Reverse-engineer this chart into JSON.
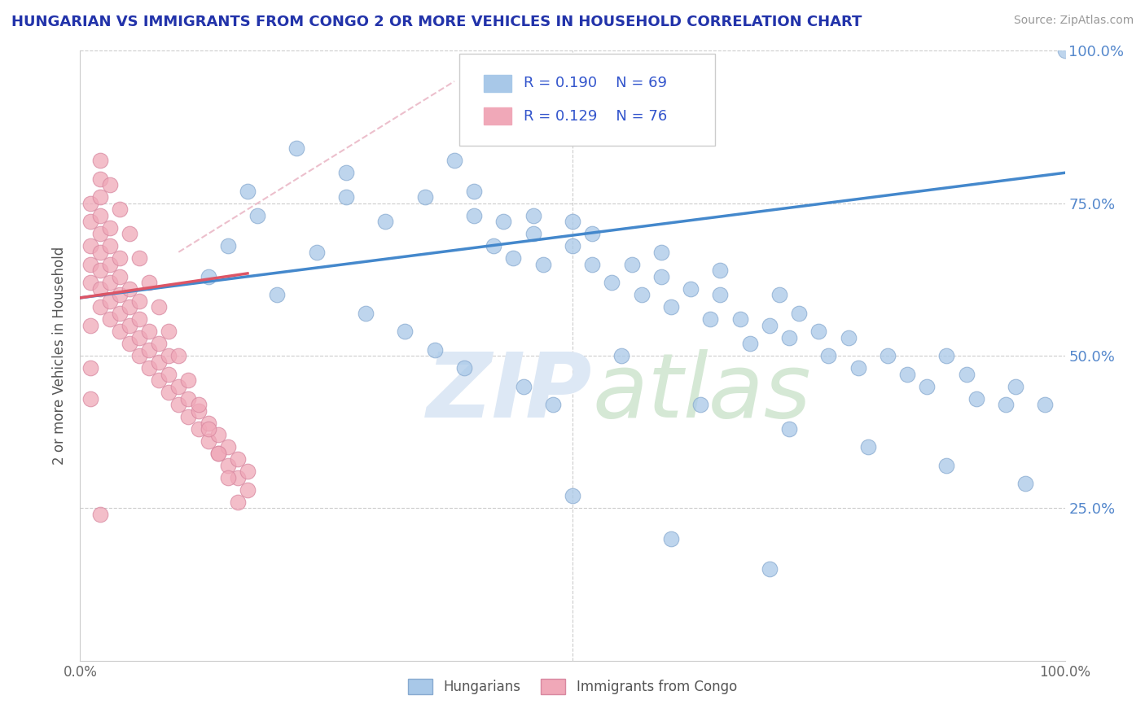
{
  "title": "HUNGARIAN VS IMMIGRANTS FROM CONGO 2 OR MORE VEHICLES IN HOUSEHOLD CORRELATION CHART",
  "source": "Source: ZipAtlas.com",
  "ylabel": "2 or more Vehicles in Household",
  "legend_label1": "Hungarians",
  "legend_label2": "Immigrants from Congo",
  "R1": 0.19,
  "N1": 69,
  "R2": 0.129,
  "N2": 76,
  "color_blue": "#a8c8e8",
  "color_blue_edge": "#88aad0",
  "color_pink": "#f0a8b8",
  "color_pink_edge": "#d888a0",
  "line_color_blue": "#4488cc",
  "line_color_pink": "#dd5566",
  "dashed_color": "#e8b0c0",
  "xlim": [
    0,
    1.0
  ],
  "ylim": [
    0,
    1.0
  ],
  "blue_line_x": [
    0.0,
    1.0
  ],
  "blue_line_y": [
    0.595,
    0.8
  ],
  "pink_line_x": [
    0.0,
    0.17
  ],
  "pink_line_y": [
    0.595,
    0.635
  ],
  "dashed_line_x": [
    0.1,
    0.38
  ],
  "dashed_line_y": [
    0.67,
    0.95
  ],
  "blue_x": [
    0.17,
    0.22,
    0.27,
    0.27,
    0.31,
    0.35,
    0.38,
    0.4,
    0.4,
    0.42,
    0.43,
    0.44,
    0.46,
    0.46,
    0.47,
    0.5,
    0.5,
    0.52,
    0.52,
    0.54,
    0.56,
    0.57,
    0.59,
    0.59,
    0.6,
    0.62,
    0.64,
    0.65,
    0.65,
    0.67,
    0.68,
    0.7,
    0.71,
    0.72,
    0.73,
    0.75,
    0.76,
    0.78,
    0.79,
    0.82,
    0.84,
    0.86,
    0.88,
    0.9,
    0.91,
    0.94,
    0.95,
    0.98,
    1.0,
    0.13,
    0.15,
    0.18,
    0.2,
    0.24,
    0.29,
    0.33,
    0.36,
    0.39,
    0.45,
    0.48,
    0.55,
    0.63,
    0.72,
    0.8,
    0.88,
    0.96,
    0.5,
    0.6,
    0.7
  ],
  "blue_y": [
    0.77,
    0.84,
    0.76,
    0.8,
    0.72,
    0.76,
    0.82,
    0.73,
    0.77,
    0.68,
    0.72,
    0.66,
    0.7,
    0.73,
    0.65,
    0.68,
    0.72,
    0.65,
    0.7,
    0.62,
    0.65,
    0.6,
    0.63,
    0.67,
    0.58,
    0.61,
    0.56,
    0.6,
    0.64,
    0.56,
    0.52,
    0.55,
    0.6,
    0.53,
    0.57,
    0.54,
    0.5,
    0.53,
    0.48,
    0.5,
    0.47,
    0.45,
    0.5,
    0.47,
    0.43,
    0.42,
    0.45,
    0.42,
    1.0,
    0.63,
    0.68,
    0.73,
    0.6,
    0.67,
    0.57,
    0.54,
    0.51,
    0.48,
    0.45,
    0.42,
    0.5,
    0.42,
    0.38,
    0.35,
    0.32,
    0.29,
    0.27,
    0.2,
    0.15
  ],
  "pink_x": [
    0.01,
    0.01,
    0.01,
    0.01,
    0.01,
    0.02,
    0.02,
    0.02,
    0.02,
    0.02,
    0.02,
    0.02,
    0.02,
    0.03,
    0.03,
    0.03,
    0.03,
    0.03,
    0.03,
    0.04,
    0.04,
    0.04,
    0.04,
    0.04,
    0.05,
    0.05,
    0.05,
    0.05,
    0.06,
    0.06,
    0.06,
    0.06,
    0.07,
    0.07,
    0.07,
    0.08,
    0.08,
    0.08,
    0.09,
    0.09,
    0.09,
    0.1,
    0.1,
    0.11,
    0.11,
    0.12,
    0.12,
    0.13,
    0.13,
    0.14,
    0.14,
    0.15,
    0.15,
    0.16,
    0.16,
    0.17,
    0.17,
    0.02,
    0.03,
    0.04,
    0.05,
    0.06,
    0.07,
    0.08,
    0.09,
    0.1,
    0.11,
    0.12,
    0.13,
    0.14,
    0.15,
    0.16,
    0.01,
    0.01,
    0.01,
    0.02
  ],
  "pink_y": [
    0.62,
    0.65,
    0.68,
    0.72,
    0.75,
    0.58,
    0.61,
    0.64,
    0.67,
    0.7,
    0.73,
    0.76,
    0.79,
    0.56,
    0.59,
    0.62,
    0.65,
    0.68,
    0.71,
    0.54,
    0.57,
    0.6,
    0.63,
    0.66,
    0.52,
    0.55,
    0.58,
    0.61,
    0.5,
    0.53,
    0.56,
    0.59,
    0.48,
    0.51,
    0.54,
    0.46,
    0.49,
    0.52,
    0.44,
    0.47,
    0.5,
    0.42,
    0.45,
    0.4,
    0.43,
    0.38,
    0.41,
    0.36,
    0.39,
    0.34,
    0.37,
    0.32,
    0.35,
    0.3,
    0.33,
    0.28,
    0.31,
    0.82,
    0.78,
    0.74,
    0.7,
    0.66,
    0.62,
    0.58,
    0.54,
    0.5,
    0.46,
    0.42,
    0.38,
    0.34,
    0.3,
    0.26,
    0.55,
    0.48,
    0.43,
    0.24
  ]
}
